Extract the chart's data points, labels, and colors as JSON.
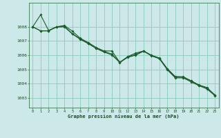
{
  "bg_color": "#cce8e8",
  "grid_color": "#88ccbb",
  "line_color": "#1a5c2a",
  "xlabel": "Graphe pression niveau de la mer (hPa)",
  "ylim": [
    1002.3,
    1009.7
  ],
  "yticks": [
    1003,
    1004,
    1005,
    1006,
    1007,
    1008
  ],
  "xticks": [
    0,
    1,
    2,
    3,
    4,
    5,
    6,
    7,
    8,
    9,
    10,
    11,
    12,
    13,
    14,
    15,
    16,
    17,
    18,
    19,
    20,
    21,
    22,
    23
  ],
  "s1": [
    1008.0,
    1008.85,
    1007.75,
    1008.0,
    1008.1,
    1007.7,
    1007.2,
    1006.9,
    1006.55,
    1006.3,
    1006.3,
    1005.5,
    1005.9,
    1006.15,
    1006.3,
    1006.0,
    1005.8,
    1005.05,
    1004.5,
    1004.48,
    1004.2,
    1003.9,
    1003.72,
    1003.2
  ],
  "s2": [
    1008.0,
    1007.72,
    1007.72,
    1008.0,
    1008.05,
    1007.52,
    1007.15,
    1006.85,
    1006.5,
    1006.27,
    1006.08,
    1005.5,
    1005.88,
    1006.05,
    1006.3,
    1005.98,
    1005.78,
    1005.02,
    1004.45,
    1004.45,
    1004.18,
    1003.88,
    1003.68,
    1003.18
  ],
  "s3": [
    1008.0,
    1007.72,
    1007.72,
    1007.98,
    1008.0,
    1007.5,
    1007.12,
    1006.82,
    1006.48,
    1006.22,
    1006.02,
    1005.48,
    1005.85,
    1006.0,
    1006.28,
    1005.95,
    1005.75,
    1004.97,
    1004.4,
    1004.4,
    1004.12,
    1003.85,
    1003.62,
    1003.15
  ]
}
